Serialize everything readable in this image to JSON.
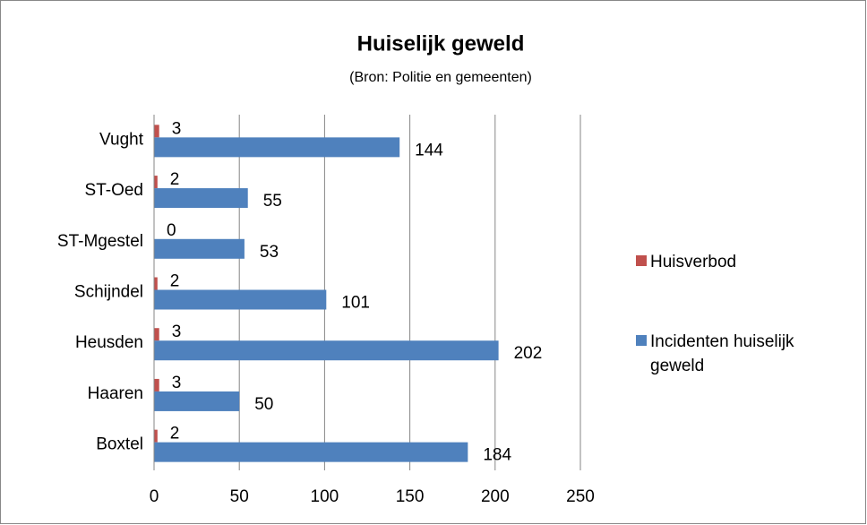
{
  "chart_data": {
    "type": "bar",
    "orientation": "horizontal",
    "title": "Huiselijk geweld",
    "subtitle": "(Bron: Politie en gemeenten)",
    "categories": [
      "Boxtel",
      "Haaren",
      "Heusden",
      "Schijndel",
      "ST-Mgestel",
      "ST-Oed",
      "Vught"
    ],
    "series": [
      {
        "name": "Huisverbod",
        "color": "#c0504d",
        "values": [
          2,
          3,
          3,
          2,
          0,
          2,
          3
        ]
      },
      {
        "name": "Incidenten huiselijk geweld",
        "color": "#4f81bd",
        "values": [
          184,
          50,
          202,
          101,
          53,
          55,
          144
        ]
      }
    ],
    "xlim": [
      0,
      250
    ],
    "xticks": [
      0,
      50,
      100,
      150,
      200,
      250
    ],
    "grid": true,
    "legend": "right"
  }
}
